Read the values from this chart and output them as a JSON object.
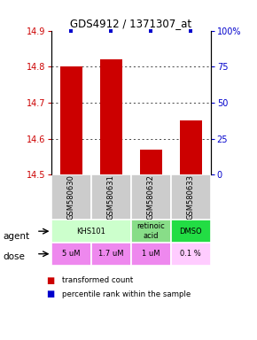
{
  "title": "GDS4912 / 1371307_at",
  "samples": [
    "GSM580630",
    "GSM580631",
    "GSM580632",
    "GSM580633"
  ],
  "bar_values": [
    14.8,
    14.82,
    14.57,
    14.65
  ],
  "percentile_values": [
    100,
    100,
    100,
    100
  ],
  "ylim": [
    14.5,
    14.9
  ],
  "yticks": [
    14.5,
    14.6,
    14.7,
    14.8,
    14.9
  ],
  "right_yticks": [
    0,
    25,
    50,
    75,
    100
  ],
  "right_yticklabels": [
    "0",
    "25",
    "50",
    "75",
    "100%"
  ],
  "bar_color": "#cc0000",
  "percentile_color": "#0000cc",
  "bar_width": 0.55,
  "left_label_color": "#cc0000",
  "right_label_color": "#0000cc",
  "agent_data": [
    {
      "label": "KHS101",
      "start": 0,
      "end": 2,
      "color": "#ccffcc"
    },
    {
      "label": "retinoic\nacid",
      "start": 2,
      "end": 3,
      "color": "#88dd88"
    },
    {
      "label": "DMSO",
      "start": 3,
      "end": 4,
      "color": "#22dd44"
    }
  ],
  "dose_data": [
    {
      "label": "5 uM",
      "start": 0,
      "end": 1,
      "color": "#ee88ee"
    },
    {
      "label": "1.7 uM",
      "start": 1,
      "end": 2,
      "color": "#ee88ee"
    },
    {
      "label": "1 uM",
      "start": 2,
      "end": 3,
      "color": "#ee88ee"
    },
    {
      "label": "0.1 %",
      "start": 3,
      "end": 4,
      "color": "#ffccff"
    }
  ],
  "grid_lines": [
    14.6,
    14.7,
    14.8
  ]
}
